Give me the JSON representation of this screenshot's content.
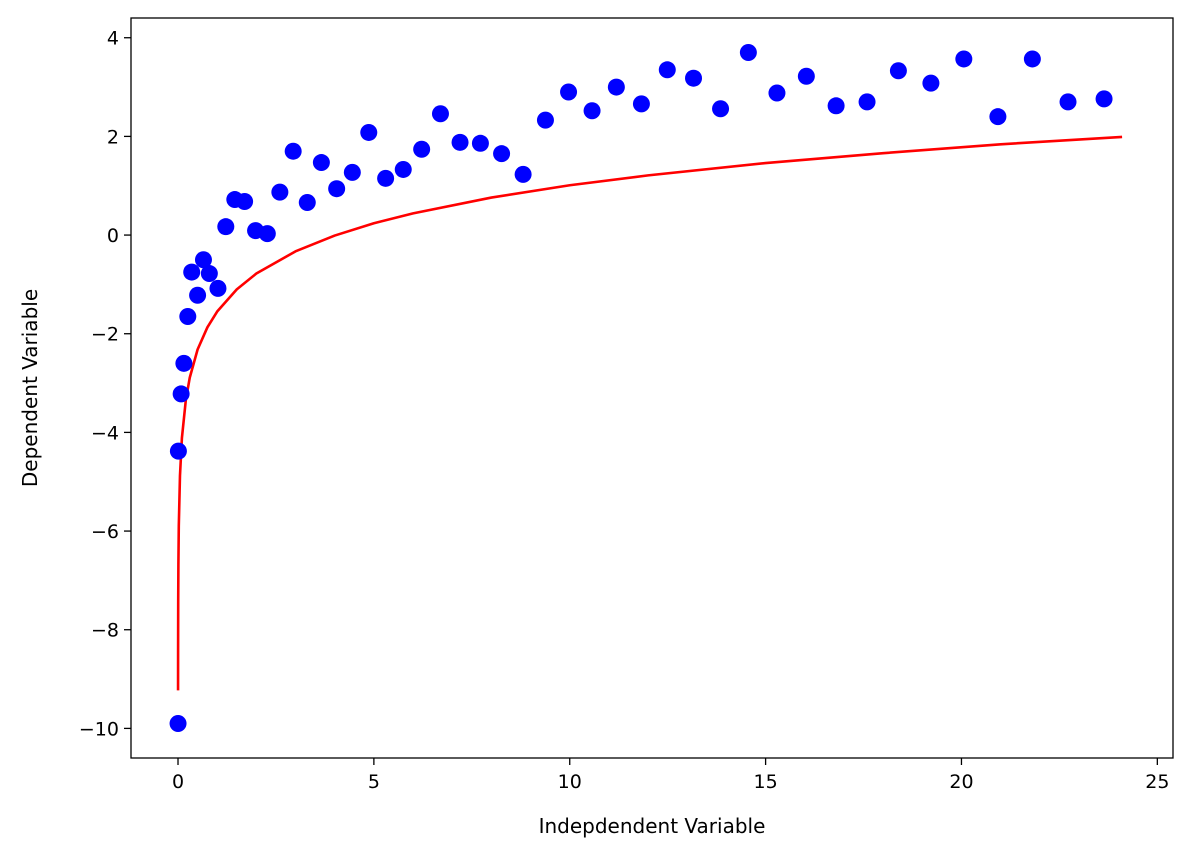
{
  "chart_data": {
    "type": "scatter",
    "xlabel": "Indepdendent Variable",
    "ylabel": "Dependent Variable",
    "xlim": [
      -1.2,
      25.4
    ],
    "ylim": [
      -10.6,
      4.4
    ],
    "xticks": [
      0,
      5,
      10,
      15,
      20,
      25
    ],
    "yticks": [
      -10,
      -8,
      -6,
      -4,
      -2,
      0,
      2,
      4
    ],
    "xtick_labels": [
      "0",
      "5",
      "10",
      "15",
      "20",
      "25"
    ],
    "ytick_labels": [
      "−10",
      "−8",
      "−6",
      "−4",
      "−2",
      "0",
      "2",
      "4"
    ],
    "grid": false,
    "colors": {
      "points": "#0000ff",
      "fit_line": "#ff0000",
      "axes": "#000000"
    },
    "fit_line": {
      "x": [
        0.001,
        0.002,
        0.005,
        0.01,
        0.02,
        0.05,
        0.1,
        0.2,
        0.3,
        0.5,
        0.75,
        1,
        1.5,
        2,
        3,
        4,
        5,
        6,
        8,
        10,
        12,
        15,
        18,
        21,
        24.1
      ],
      "y": [
        -9.23,
        -8.46,
        -7.44,
        -6.67,
        -5.9,
        -4.88,
        -4.11,
        -3.34,
        -2.89,
        -2.32,
        -1.87,
        -1.55,
        -1.1,
        -0.78,
        -0.33,
        -0.01,
        0.24,
        0.44,
        0.76,
        1.01,
        1.21,
        1.46,
        1.66,
        1.84,
        1.99
      ]
    },
    "points": {
      "x": [
        0.001,
        0.01,
        0.08,
        0.15,
        0.25,
        0.35,
        0.5,
        0.65,
        0.8,
        1.02,
        1.22,
        1.45,
        1.7,
        1.98,
        2.28,
        2.6,
        2.94,
        3.3,
        3.66,
        4.05,
        4.45,
        4.87,
        5.3,
        5.75,
        6.22,
        6.7,
        7.2,
        7.72,
        8.26,
        8.81,
        9.38,
        9.97,
        10.57,
        11.19,
        11.83,
        12.49,
        13.16,
        13.85,
        14.56,
        15.29,
        16.04,
        16.8,
        17.59,
        18.39,
        19.22,
        20.06,
        20.93,
        21.81,
        22.72,
        23.64
      ],
      "y": [
        -9.9,
        -4.38,
        -3.22,
        -2.6,
        -1.65,
        -0.75,
        -1.22,
        -0.5,
        -0.78,
        -1.08,
        0.17,
        0.72,
        0.68,
        0.09,
        0.03,
        0.87,
        1.7,
        0.66,
        1.47,
        0.94,
        1.27,
        2.08,
        1.15,
        1.33,
        1.74,
        2.46,
        1.88,
        1.86,
        1.65,
        1.23,
        2.33,
        2.9,
        2.52,
        3.0,
        2.66,
        3.35,
        3.18,
        2.56,
        3.7,
        2.88,
        3.22,
        2.62,
        2.7,
        3.33,
        3.08,
        3.57,
        2.4,
        3.57,
        2.7,
        2.76
      ]
    }
  }
}
